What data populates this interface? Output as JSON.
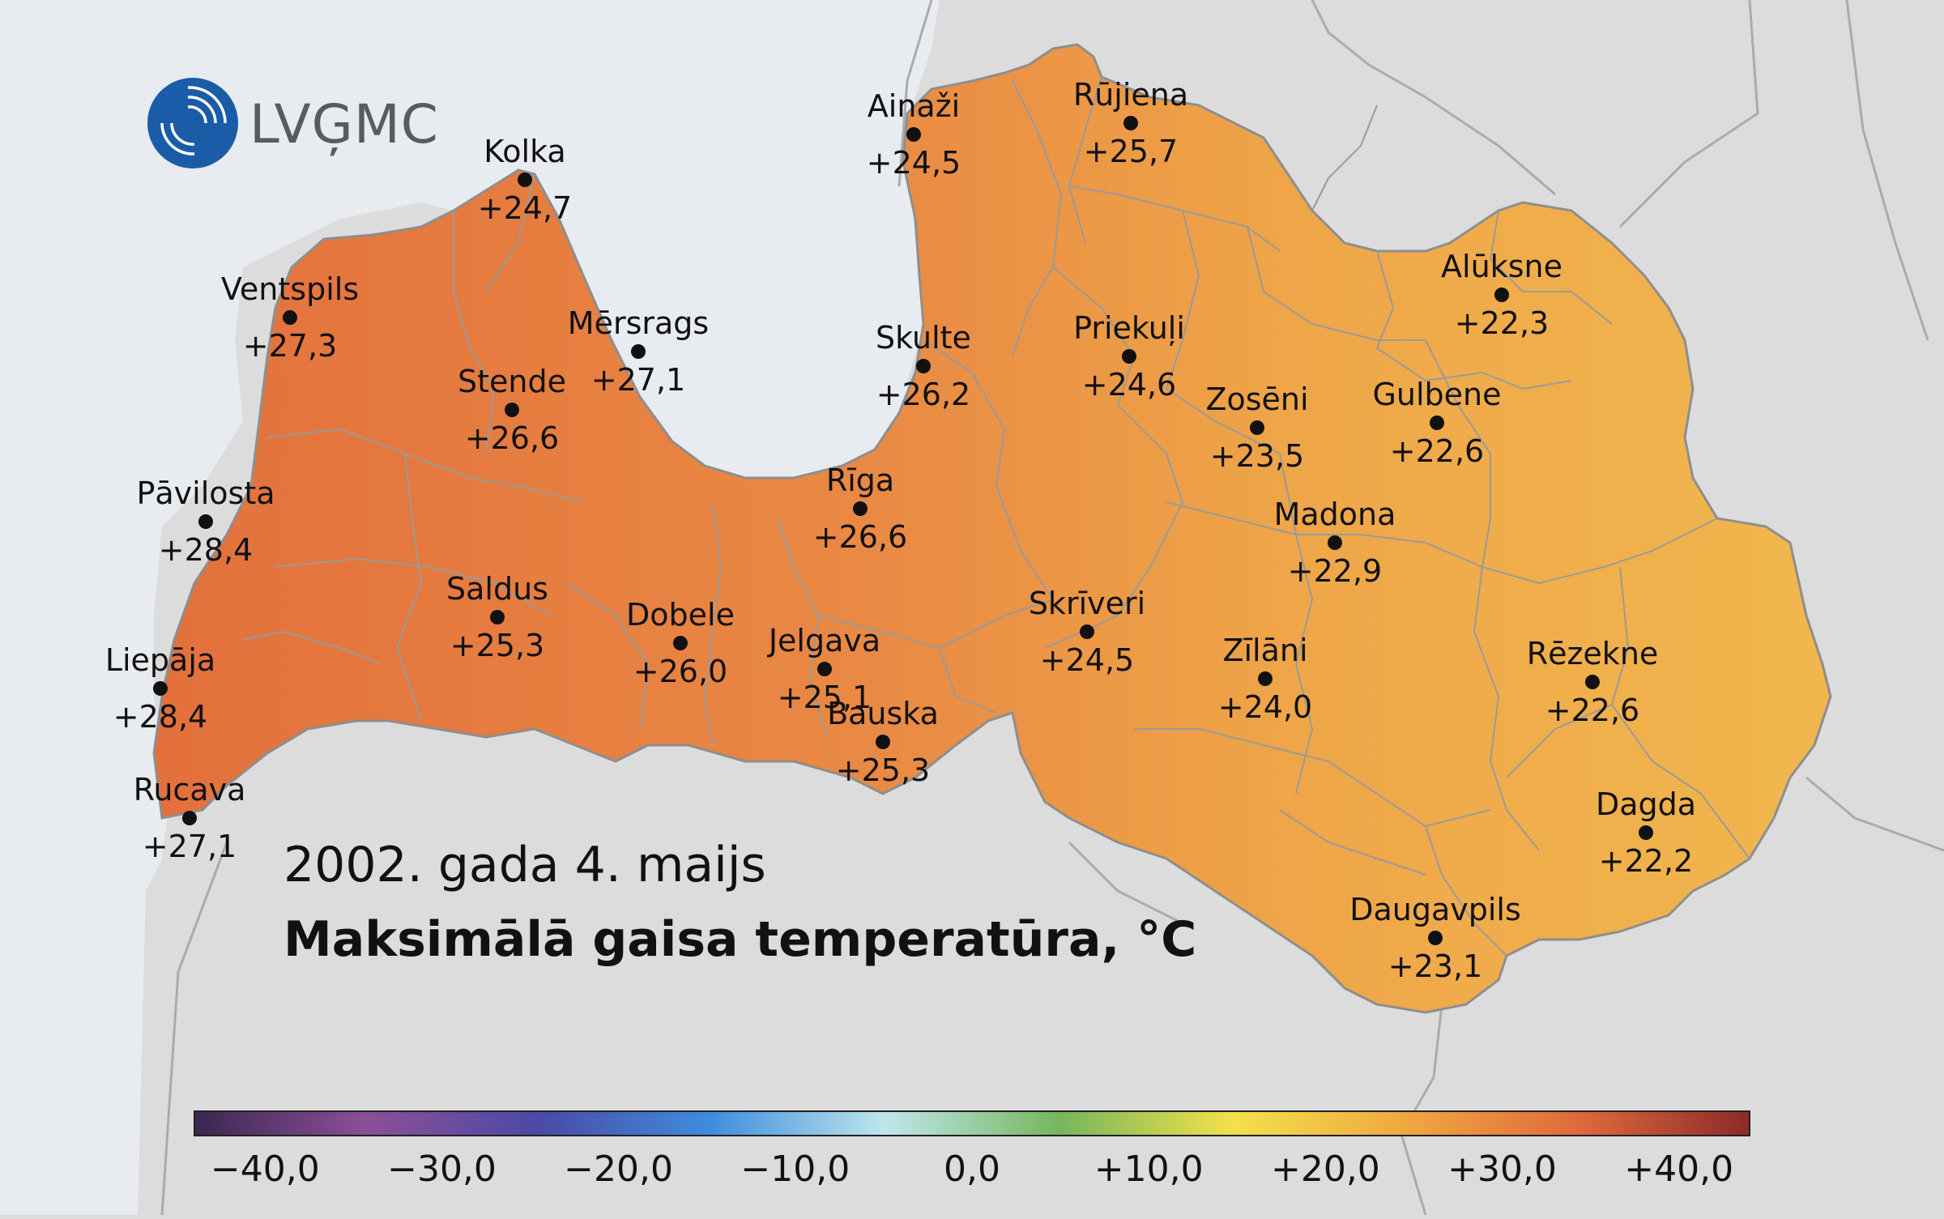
{
  "logo": {
    "text": "LVĢMC"
  },
  "map": {
    "date": "2002. gada 4. maijs",
    "title": "Maksimālā gaisa temperatūra, °C"
  },
  "stations": [
    {
      "name": "Kolka",
      "temp": "+24,7"
    },
    {
      "name": "Ventspils",
      "temp": "+27,3"
    },
    {
      "name": "Mērsrags",
      "temp": "+27,1"
    },
    {
      "name": "Stende",
      "temp": "+26,6"
    },
    {
      "name": "Pāvilosta",
      "temp": "+28,4"
    },
    {
      "name": "Saldus",
      "temp": "+25,3"
    },
    {
      "name": "Dobele",
      "temp": "+26,0"
    },
    {
      "name": "Liepāja",
      "temp": "+28,4"
    },
    {
      "name": "Rucava",
      "temp": "+27,1"
    },
    {
      "name": "Jelgava",
      "temp": "+25,1"
    },
    {
      "name": "Bauska",
      "temp": "+25,3"
    },
    {
      "name": "Rīga",
      "temp": "+26,6"
    },
    {
      "name": "Ainaži",
      "temp": "+24,5"
    },
    {
      "name": "Skulte",
      "temp": "+26,2"
    },
    {
      "name": "Rūjiena",
      "temp": "+25,7"
    },
    {
      "name": "Priekuļi",
      "temp": "+24,6"
    },
    {
      "name": "Skrīveri",
      "temp": "+24,5"
    },
    {
      "name": "Zosēni",
      "temp": "+23,5"
    },
    {
      "name": "Alūksne",
      "temp": "+22,3"
    },
    {
      "name": "Gulbene",
      "temp": "+22,6"
    },
    {
      "name": "Madona",
      "temp": "+22,9"
    },
    {
      "name": "Zīlāni",
      "temp": "+24,0"
    },
    {
      "name": "Rēzekne",
      "temp": "+22,6"
    },
    {
      "name": "Dagda",
      "temp": "+22,2"
    },
    {
      "name": "Daugavpils",
      "temp": "+23,1"
    }
  ],
  "legend": {
    "ticks": [
      "−40,0",
      "−30,0",
      "−20,0",
      "−10,0",
      "0,0",
      "+10,0",
      "+20,0",
      "+30,0",
      "+40,0"
    ],
    "range": [
      -44,
      44
    ],
    "colors": [
      "#3b2750",
      "#8c4f98",
      "#4a4aa6",
      "#3f8ede",
      "#bfe6ec",
      "#76b65c",
      "#f3e14b",
      "#f0a840",
      "#e06a3b",
      "#8c2a2a"
    ]
  },
  "colors": {
    "sea": "#e8ebef",
    "land_outside": "#dcdcdc",
    "latvia_west": "#e36f3c",
    "latvia_east": "#f1b64d",
    "boundary": "#9a9a9a",
    "logo_blue": "#1a5ca8"
  }
}
